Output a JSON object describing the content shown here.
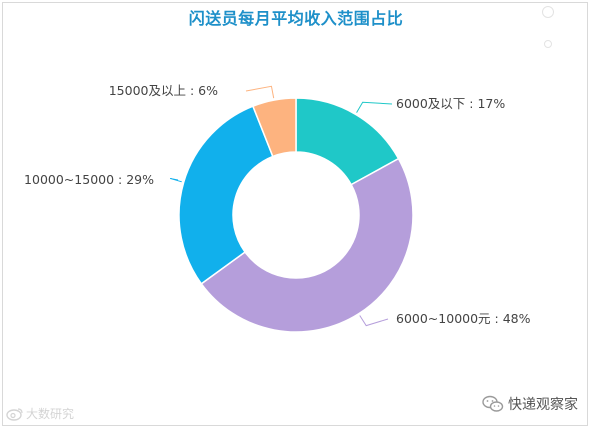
{
  "chart_data": {
    "type": "pie",
    "donut": true,
    "title": "闪送员每月平均收入范围占比",
    "slices": [
      {
        "label": "6000及以下",
        "value": 17,
        "color": "#1fc8c8"
      },
      {
        "label": "6000~10000元",
        "value": 48,
        "color": "#b59edb"
      },
      {
        "label": "10000~15000",
        "value": 29,
        "color": "#11b0ec"
      },
      {
        "label": "15000及以上",
        "value": 6,
        "color": "#fdb37f"
      }
    ],
    "legend": "none"
  },
  "watermark": {
    "left_text": "大数研究",
    "right_text": "快递观察家"
  }
}
